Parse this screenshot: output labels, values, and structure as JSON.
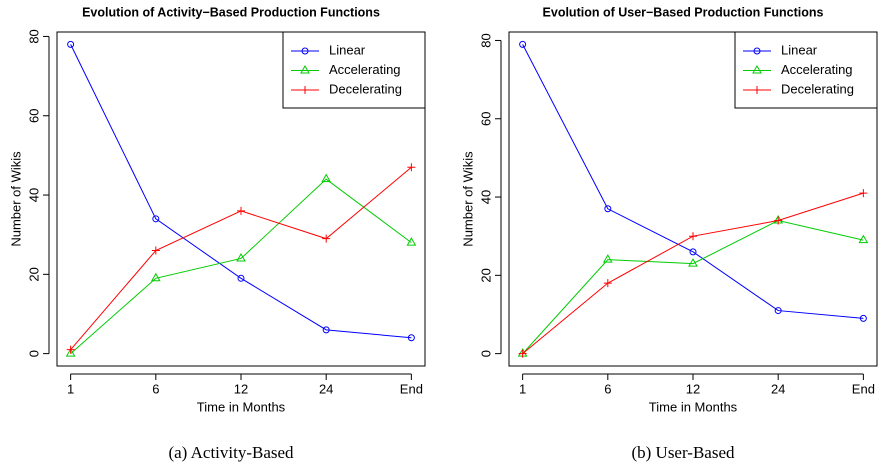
{
  "chart_data": [
    {
      "type": "line",
      "title": "Evolution of Activity−Based Production Functions",
      "caption": "(a) Activity-Based",
      "x_label": "Time in Months",
      "y_label": "Number of Wikis",
      "categories": [
        "1",
        "6",
        "12",
        "24",
        "End"
      ],
      "series": [
        {
          "name": "Linear",
          "color": "#0000ff",
          "marker": "circle",
          "values": [
            78,
            34,
            19,
            6,
            4
          ]
        },
        {
          "name": "Accelerating",
          "color": "#00cc00",
          "marker": "triangle",
          "values": [
            0,
            19,
            24,
            44,
            28
          ]
        },
        {
          "name": "Decelerating",
          "color": "#ff0000",
          "marker": "plus",
          "values": [
            1,
            26,
            36,
            29,
            47
          ]
        }
      ],
      "ylim": [
        -3.12,
        81.12
      ],
      "yticks": [
        0,
        20,
        40,
        60,
        80
      ],
      "legend": "top-right"
    },
    {
      "type": "line",
      "title": "Evolution of User−Based Production Functions",
      "caption": "(b) User-Based",
      "x_label": "Time in Months",
      "y_label": "Number of Wikis",
      "categories": [
        "1",
        "6",
        "12",
        "24",
        "End"
      ],
      "series": [
        {
          "name": "Linear",
          "color": "#0000ff",
          "marker": "circle",
          "values": [
            79,
            37,
            26,
            11,
            9
          ]
        },
        {
          "name": "Accelerating",
          "color": "#00cc00",
          "marker": "triangle",
          "values": [
            0,
            24,
            23,
            34,
            29
          ]
        },
        {
          "name": "Decelerating",
          "color": "#ff0000",
          "marker": "plus",
          "values": [
            0,
            18,
            30,
            34,
            41
          ]
        }
      ],
      "ylim": [
        -3.16,
        82.16
      ],
      "yticks": [
        0,
        20,
        40,
        60,
        80
      ],
      "legend": "top-right"
    }
  ]
}
